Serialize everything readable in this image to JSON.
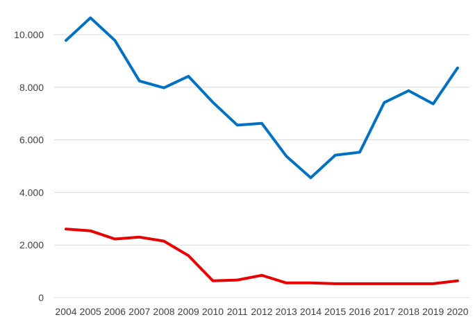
{
  "chart_data": {
    "type": "line",
    "title": "",
    "xlabel": "",
    "ylabel": "",
    "categories": [
      "2004",
      "2005",
      "2006",
      "2007",
      "2008",
      "2009",
      "2010",
      "2011",
      "2012",
      "2013",
      "2014",
      "2015",
      "2016",
      "2017",
      "2018",
      "2019",
      "2020"
    ],
    "ylim": [
      0,
      10000
    ],
    "yticks": [
      0,
      2000,
      4000,
      6000,
      8000,
      10000
    ],
    "ytick_labels": [
      "0",
      "2.000",
      "4.000",
      "6.000",
      "8.000",
      "10.000"
    ],
    "grid": true,
    "legend": "none",
    "series": [
      {
        "color": "#0070c0",
        "values": [
          9780,
          10640,
          9780,
          8240,
          7980,
          8420,
          7430,
          6560,
          6630,
          5380,
          4560,
          5420,
          5530,
          7420,
          7870,
          7370,
          8740
        ]
      },
      {
        "color": "#e60000",
        "values": [
          2610,
          2540,
          2230,
          2300,
          2150,
          1600,
          640,
          670,
          850,
          560,
          560,
          530,
          530,
          530,
          530,
          530,
          640
        ]
      }
    ]
  }
}
